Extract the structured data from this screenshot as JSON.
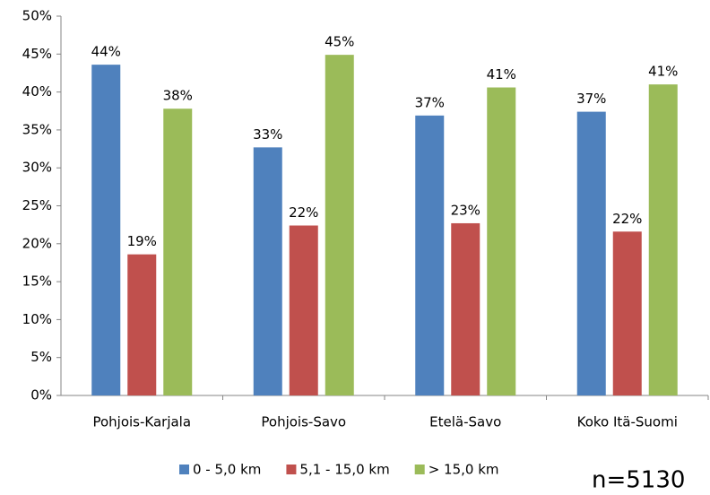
{
  "chart_data": {
    "type": "bar",
    "categories": [
      "Pohjois-Karjala",
      "Pohjois-Savo",
      "Etelä-Savo",
      "Koko Itä-Suomi"
    ],
    "series": [
      {
        "name": "0 - 5,0 km",
        "color": "#4f81bd",
        "values": [
          43.6,
          32.7,
          36.9,
          37.4
        ],
        "value_labels": [
          "44%",
          "33%",
          "37%",
          "37%"
        ]
      },
      {
        "name": "5,1 - 15,0 km",
        "color": "#c0504d",
        "values": [
          18.6,
          22.4,
          22.7,
          21.6
        ],
        "value_labels": [
          "19%",
          "22%",
          "23%",
          "22%"
        ]
      },
      {
        "name": "> 15,0 km",
        "color": "#9bbb59",
        "values": [
          37.8,
          44.9,
          40.6,
          41.0
        ],
        "value_labels": [
          "38%",
          "45%",
          "41%",
          "41%"
        ]
      }
    ],
    "ylim": [
      0,
      50
    ],
    "yticks": [
      {
        "value": 0,
        "label": "0%"
      },
      {
        "value": 5,
        "label": "5%"
      },
      {
        "value": 10,
        "label": "10%"
      },
      {
        "value": 15,
        "label": "15%"
      },
      {
        "value": 20,
        "label": "20%"
      },
      {
        "value": 25,
        "label": "25%"
      },
      {
        "value": 30,
        "label": "30%"
      },
      {
        "value": 35,
        "label": "35%"
      },
      {
        "value": 40,
        "label": "40%"
      },
      {
        "value": 45,
        "label": "45%"
      },
      {
        "value": 50,
        "label": "50%"
      }
    ],
    "grid": false,
    "legend": "bottom",
    "annotations": [
      "n=5130"
    ]
  }
}
